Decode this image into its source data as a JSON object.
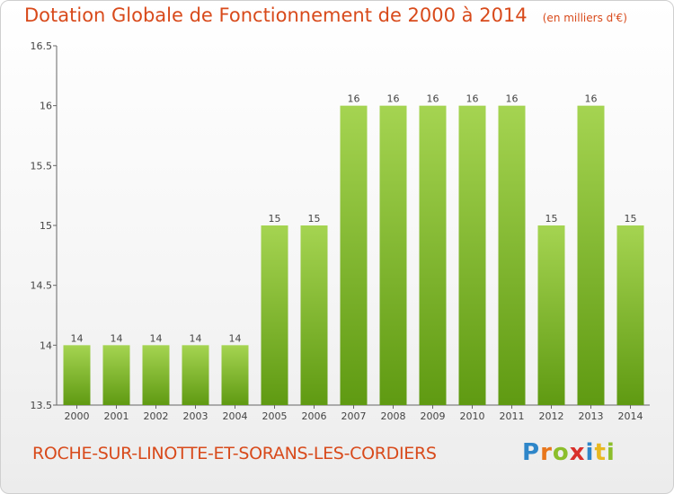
{
  "title": "Dotation Globale de Fonctionnement de 2000 à 2014",
  "unit": "(en milliers d'€)",
  "commune": "ROCHE-SUR-LINOTTE-ET-SORANS-LES-CORDIERS",
  "logo": {
    "letters": [
      "P",
      "r",
      "o",
      "x",
      "i",
      "t",
      "i"
    ],
    "colors": [
      "#2e86c9",
      "#e8761b",
      "#8cbe2b",
      "#d9302b",
      "#2e86c9",
      "#e8b820",
      "#8cbe2b"
    ]
  },
  "colors": {
    "bar_top": "#a5d451",
    "bar_bottom": "#5f9a12",
    "title": "#d84a1b"
  },
  "chart_data": {
    "type": "bar",
    "title": "Dotation Globale de Fonctionnement de 2000 à 2014",
    "categories": [
      "2000",
      "2001",
      "2002",
      "2003",
      "2004",
      "2005",
      "2006",
      "2007",
      "2008",
      "2009",
      "2010",
      "2011",
      "2012",
      "2013",
      "2014"
    ],
    "values": [
      14,
      14,
      14,
      14,
      14,
      15,
      15,
      16,
      16,
      16,
      16,
      16,
      15,
      16,
      15
    ],
    "data_labels": [
      "14",
      "14",
      "14",
      "14",
      "14",
      "15",
      "15",
      "16",
      "16",
      "16",
      "16",
      "16",
      "15",
      "16",
      "15"
    ],
    "ylim": [
      13.5,
      16.5
    ],
    "yticks": [
      13.5,
      14,
      14.5,
      15,
      15.5,
      16,
      16.5
    ],
    "ytick_labels": [
      "13.5",
      "14",
      "14.5",
      "15",
      "15.5",
      "16",
      "16.5"
    ],
    "grid": false,
    "xlabel": "",
    "ylabel": ""
  }
}
